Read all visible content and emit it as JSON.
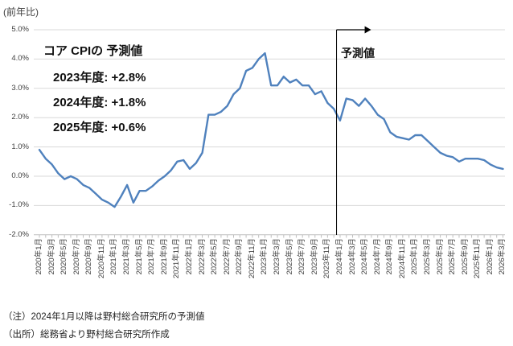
{
  "annotation": {
    "title": "コア CPIの 予測値",
    "lines": [
      "2023年度: +2.8%",
      "2024年度: +1.8%",
      "2025年度: +0.6%"
    ]
  },
  "forecast": {
    "label": "予測値",
    "start_month": "2024年1月"
  },
  "notes": [
    "（注）2024年1月以降は野村総合研究所の予測値",
    "（出所）総務省より野村総合研究所作成"
  ],
  "chart_data": {
    "type": "line",
    "title": "",
    "ylabel": "(前年比)",
    "xlabel": "",
    "ylim": [
      -2.0,
      5.0
    ],
    "grid": true,
    "legend_position": "none",
    "grid_color": "#D9D9D9",
    "axis_color": "#BFBFBF",
    "divider_color": "#000000",
    "ytick_labels": [
      "5.0%",
      "4.0%",
      "3.0%",
      "2.0%",
      "1.0%",
      "0.0%",
      "-1.0%",
      "-2.0%"
    ],
    "ytick_values": [
      5,
      4,
      3,
      2,
      1,
      0,
      -1,
      -2
    ],
    "x_tick_step": 2,
    "months": [
      "2020年1月",
      "2020年2月",
      "2020年3月",
      "2020年4月",
      "2020年5月",
      "2020年6月",
      "2020年7月",
      "2020年8月",
      "2020年9月",
      "2020年10月",
      "2020年11月",
      "2020年12月",
      "2021年1月",
      "2021年2月",
      "2021年3月",
      "2021年4月",
      "2021年5月",
      "2021年6月",
      "2021年7月",
      "2021年8月",
      "2021年9月",
      "2021年10月",
      "2021年11月",
      "2021年12月",
      "2022年1月",
      "2022年2月",
      "2022年3月",
      "2022年4月",
      "2022年5月",
      "2022年6月",
      "2022年7月",
      "2022年8月",
      "2022年9月",
      "2022年10月",
      "2022年11月",
      "2022年12月",
      "2023年1月",
      "2023年2月",
      "2023年3月",
      "2023年4月",
      "2023年5月",
      "2023年6月",
      "2023年7月",
      "2023年8月",
      "2023年9月",
      "2023年10月",
      "2023年11月",
      "2023年12月",
      "2024年1月",
      "2024年2月",
      "2024年3月",
      "2024年4月",
      "2024年5月",
      "2024年6月",
      "2024年7月",
      "2024年8月",
      "2024年9月",
      "2024年10月",
      "2024年11月",
      "2024年12月",
      "2025年1月",
      "2025年2月",
      "2025年3月",
      "2025年4月",
      "2025年5月",
      "2025年6月",
      "2025年7月",
      "2025年8月",
      "2025年9月",
      "2025年10月",
      "2025年11月",
      "2025年12月",
      "2026年1月",
      "2026年2月",
      "2026年3月"
    ],
    "series": [
      {
        "name": "コアCPI（前年比）",
        "color": "#4F81BD",
        "values": [
          0.9,
          0.6,
          0.4,
          0.1,
          -0.1,
          0.0,
          -0.1,
          -0.3,
          -0.4,
          -0.6,
          -0.8,
          -0.9,
          -1.05,
          -0.7,
          -0.3,
          -0.9,
          -0.5,
          -0.5,
          -0.35,
          -0.15,
          0.0,
          0.2,
          0.5,
          0.55,
          0.25,
          0.45,
          0.8,
          2.1,
          2.1,
          2.2,
          2.4,
          2.8,
          3.0,
          3.6,
          3.7,
          4.0,
          4.2,
          3.1,
          3.1,
          3.4,
          3.2,
          3.3,
          3.1,
          3.1,
          2.8,
          2.9,
          2.5,
          2.3,
          1.9,
          2.65,
          2.6,
          2.4,
          2.65,
          2.4,
          2.1,
          1.95,
          1.5,
          1.35,
          1.3,
          1.25,
          1.4,
          1.4,
          1.2,
          1.0,
          0.8,
          0.7,
          0.65,
          0.5,
          0.6,
          0.6,
          0.6,
          0.55,
          0.4,
          0.3,
          0.25
        ]
      }
    ]
  }
}
